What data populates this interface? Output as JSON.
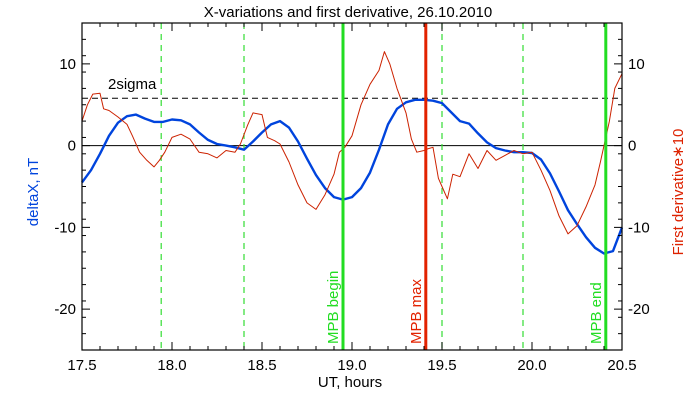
{
  "chart_data": {
    "type": "line",
    "title": "X-variations and first derivative, 26.10.2010",
    "xlabel": "UT, hours",
    "ylabel_left": "deltaX, nT",
    "ylabel_right": "First derivative∗10",
    "xlim": [
      17.5,
      20.5
    ],
    "ylim": [
      -25,
      15
    ],
    "xticks": [
      "17.5",
      "18.0",
      "18.5",
      "19.0",
      "19.5",
      "20.0",
      "20.5"
    ],
    "xtick_values": [
      17.5,
      18.0,
      18.5,
      19.0,
      19.5,
      20.0,
      20.5
    ],
    "yticks_left": [
      "10",
      "0",
      "-10",
      "-20"
    ],
    "yticks_right": [
      "10",
      "0",
      "-10",
      "-20"
    ],
    "ytick_values": [
      10,
      0,
      -10,
      -20
    ],
    "sigma_level": 5.8,
    "sigma_label": "2sigma",
    "dashed_verticals": [
      17.94,
      18.4,
      19.5,
      19.95
    ],
    "markers": [
      {
        "x": 18.95,
        "label": "MPB begin",
        "color": "#22dd22"
      },
      {
        "x": 19.41,
        "label": "MPB max",
        "color": "#e22200"
      },
      {
        "x": 20.41,
        "label": "MPB end",
        "color": "#22dd22"
      }
    ],
    "series": [
      {
        "color": "#0044dd",
        "x": [
          17.5,
          17.55,
          17.6,
          17.65,
          17.7,
          17.75,
          17.8,
          17.85,
          17.9,
          17.95,
          18.0,
          18.05,
          18.1,
          18.15,
          18.2,
          18.25,
          18.3,
          18.35,
          18.4,
          18.45,
          18.5,
          18.55,
          18.6,
          18.65,
          18.7,
          18.75,
          18.8,
          18.85,
          18.9,
          18.95,
          19.0,
          19.05,
          19.1,
          19.15,
          19.2,
          19.25,
          19.3,
          19.35,
          19.4,
          19.45,
          19.5,
          19.55,
          19.6,
          19.65,
          19.7,
          19.75,
          19.8,
          19.85,
          19.9,
          19.95,
          20.0,
          20.05,
          20.1,
          20.15,
          20.2,
          20.25,
          20.3,
          20.35,
          20.4,
          20.45,
          20.5
        ],
        "values": [
          -4.5,
          -3,
          -1,
          1.2,
          2.8,
          3.6,
          3.8,
          3.3,
          2.9,
          2.9,
          3.2,
          3.1,
          2.6,
          1.6,
          0.7,
          0.2,
          0,
          -0.2,
          -0.5,
          0.5,
          1.6,
          2.6,
          3.0,
          2.2,
          0.5,
          -1.6,
          -3.6,
          -5.2,
          -6.3,
          -6.6,
          -6.3,
          -5.2,
          -3.3,
          -0.5,
          2.6,
          4.5,
          5.3,
          5.6,
          5.6,
          5.5,
          5.2,
          4.1,
          3.0,
          2.7,
          1.5,
          0.4,
          -0.3,
          -0.6,
          -0.8,
          -0.8,
          -0.9,
          -1.7,
          -3.4,
          -5.6,
          -7.9,
          -9.6,
          -11.2,
          -12.5,
          -13.2,
          -12.9,
          -10.0
        ]
      },
      {
        "color": "#cc2200",
        "x": [
          17.5,
          17.53,
          17.56,
          17.6,
          17.62,
          17.65,
          17.7,
          17.75,
          17.78,
          17.82,
          17.86,
          17.9,
          17.93,
          17.96,
          18.0,
          18.05,
          18.1,
          18.15,
          18.2,
          18.25,
          18.3,
          18.35,
          18.38,
          18.42,
          18.45,
          18.5,
          18.53,
          18.57,
          18.6,
          18.65,
          18.7,
          18.75,
          18.8,
          18.85,
          18.9,
          18.93,
          18.96,
          19.0,
          19.05,
          19.1,
          19.15,
          19.18,
          19.21,
          19.25,
          19.3,
          19.33,
          19.36,
          19.4,
          19.42,
          19.45,
          19.48,
          19.5,
          19.53,
          19.56,
          19.6,
          19.65,
          19.7,
          19.75,
          19.8,
          19.85,
          19.9,
          19.95,
          20.0,
          20.05,
          20.1,
          20.15,
          20.2,
          20.25,
          20.3,
          20.35,
          20.38,
          20.4,
          20.43,
          20.46,
          20.5
        ],
        "values": [
          3.0,
          5.0,
          6.3,
          6.4,
          4.5,
          4.3,
          3.5,
          2.6,
          1.2,
          -0.8,
          -1.8,
          -2.6,
          -1.8,
          -0.8,
          1.0,
          1.4,
          0.8,
          -0.8,
          -1.0,
          -1.5,
          -0.6,
          -0.8,
          0.2,
          2.5,
          4.0,
          3.8,
          1.0,
          0.6,
          0.2,
          -2.0,
          -4.8,
          -7.0,
          -7.8,
          -6.0,
          -3.5,
          -0.8,
          -0.2,
          1.2,
          5.0,
          7.5,
          9.2,
          11.5,
          10.0,
          7.0,
          4.0,
          0.8,
          -0.8,
          -0.6,
          -0.4,
          -0.2,
          -4.0,
          -5.0,
          -6.5,
          -3.5,
          -3.8,
          -1.0,
          -2.8,
          -0.6,
          -1.8,
          -1.2,
          -0.6,
          -1.0,
          -0.8,
          -3.0,
          -5.5,
          -8.6,
          -10.8,
          -9.8,
          -7.5,
          -4.8,
          -2.0,
          0.0,
          3.0,
          7.0,
          8.8
        ]
      }
    ]
  }
}
